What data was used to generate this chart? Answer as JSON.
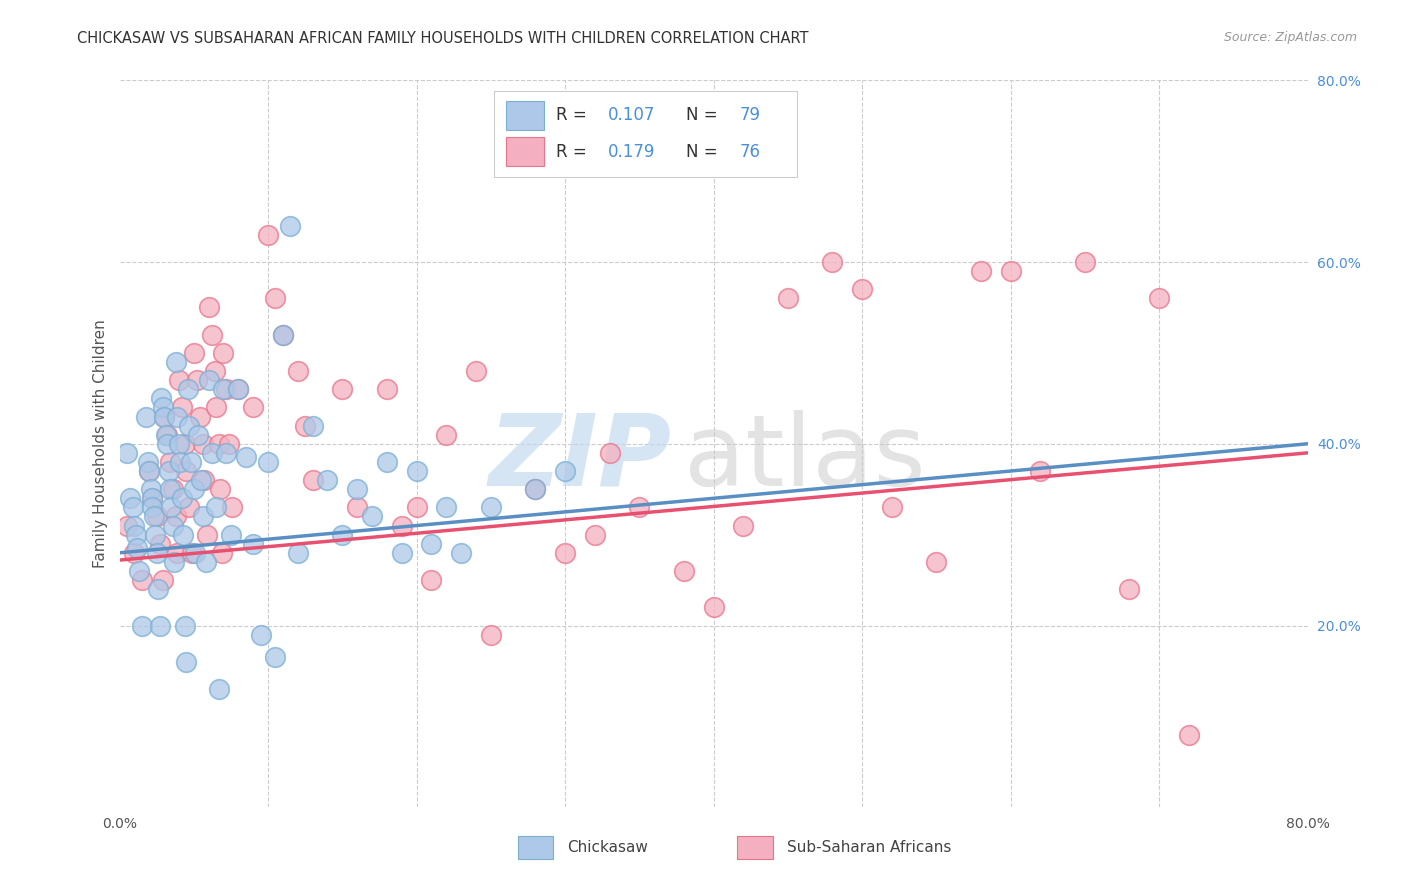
{
  "title": "CHICKASAW VS SUBSAHARAN AFRICAN FAMILY HOUSEHOLDS WITH CHILDREN CORRELATION CHART",
  "source": "Source: ZipAtlas.com",
  "ylabel": "Family Households with Children",
  "x_min": 0.0,
  "x_max": 0.8,
  "y_min": 0.0,
  "y_max": 0.8,
  "y_ticks_right": [
    0.2,
    0.4,
    0.6,
    0.8
  ],
  "y_tick_labels_right": [
    "20.0%",
    "40.0%",
    "60.0%",
    "80.0%"
  ],
  "chickasaw_color": "#7bafd4",
  "subsaharan_color": "#e8748c",
  "chickasaw_fill": "#adc8e8",
  "subsaharan_fill": "#f4b0c0",
  "trendline_chickasaw_color": "#5a8fc4",
  "trendline_subsaharan_color": "#e85070",
  "bottom_legend_1": "Chickasaw",
  "bottom_legend_2": "Sub-Saharan Africans",
  "bg_color": "#ffffff",
  "grid_color": "#cccccc",
  "title_color": "#333333",
  "axis_label_color": "#555555",
  "right_tick_color": "#4a90d9",
  "watermark_zip_color": "#c0d8ee",
  "watermark_atlas_color": "#c8c8c8",
  "chickasaw_x": [
    0.005,
    0.007,
    0.009,
    0.01,
    0.011,
    0.012,
    0.013,
    0.015,
    0.018,
    0.019,
    0.02,
    0.021,
    0.022,
    0.022,
    0.023,
    0.024,
    0.025,
    0.026,
    0.027,
    0.028,
    0.029,
    0.03,
    0.031,
    0.032,
    0.033,
    0.034,
    0.035,
    0.036,
    0.037,
    0.038,
    0.039,
    0.04,
    0.041,
    0.042,
    0.043,
    0.044,
    0.045,
    0.046,
    0.047,
    0.048,
    0.05,
    0.051,
    0.053,
    0.055,
    0.056,
    0.058,
    0.06,
    0.062,
    0.065,
    0.067,
    0.07,
    0.072,
    0.075,
    0.08,
    0.085,
    0.09,
    0.095,
    0.1,
    0.105,
    0.11,
    0.115,
    0.12,
    0.13,
    0.14,
    0.15,
    0.16,
    0.17,
    0.18,
    0.19,
    0.2,
    0.21,
    0.22,
    0.23,
    0.25,
    0.28,
    0.3
  ],
  "chickasaw_y": [
    0.39,
    0.34,
    0.33,
    0.31,
    0.3,
    0.285,
    0.26,
    0.2,
    0.43,
    0.38,
    0.37,
    0.35,
    0.34,
    0.33,
    0.32,
    0.3,
    0.28,
    0.24,
    0.2,
    0.45,
    0.44,
    0.43,
    0.41,
    0.4,
    0.37,
    0.35,
    0.33,
    0.31,
    0.27,
    0.49,
    0.43,
    0.4,
    0.38,
    0.34,
    0.3,
    0.2,
    0.16,
    0.46,
    0.42,
    0.38,
    0.35,
    0.28,
    0.41,
    0.36,
    0.32,
    0.27,
    0.47,
    0.39,
    0.33,
    0.13,
    0.46,
    0.39,
    0.3,
    0.46,
    0.385,
    0.29,
    0.19,
    0.38,
    0.165,
    0.52,
    0.64,
    0.28,
    0.42,
    0.36,
    0.3,
    0.35,
    0.32,
    0.38,
    0.28,
    0.37,
    0.29,
    0.33,
    0.28,
    0.33,
    0.35,
    0.37
  ],
  "subsaharan_x": [
    0.005,
    0.01,
    0.015,
    0.02,
    0.022,
    0.025,
    0.027,
    0.029,
    0.03,
    0.032,
    0.034,
    0.036,
    0.038,
    0.039,
    0.04,
    0.042,
    0.044,
    0.045,
    0.047,
    0.049,
    0.05,
    0.052,
    0.054,
    0.056,
    0.057,
    0.059,
    0.06,
    0.062,
    0.064,
    0.065,
    0.067,
    0.068,
    0.069,
    0.07,
    0.072,
    0.074,
    0.076,
    0.08,
    0.09,
    0.1,
    0.105,
    0.11,
    0.12,
    0.125,
    0.13,
    0.15,
    0.16,
    0.18,
    0.19,
    0.2,
    0.21,
    0.22,
    0.24,
    0.25,
    0.28,
    0.3,
    0.32,
    0.33,
    0.35,
    0.38,
    0.4,
    0.42,
    0.45,
    0.48,
    0.5,
    0.52,
    0.55,
    0.58,
    0.6,
    0.62,
    0.65,
    0.68,
    0.7,
    0.72
  ],
  "subsaharan_y": [
    0.31,
    0.28,
    0.25,
    0.37,
    0.34,
    0.32,
    0.29,
    0.25,
    0.43,
    0.41,
    0.38,
    0.35,
    0.32,
    0.28,
    0.47,
    0.44,
    0.4,
    0.37,
    0.33,
    0.28,
    0.5,
    0.47,
    0.43,
    0.4,
    0.36,
    0.3,
    0.55,
    0.52,
    0.48,
    0.44,
    0.4,
    0.35,
    0.28,
    0.5,
    0.46,
    0.4,
    0.33,
    0.46,
    0.44,
    0.63,
    0.56,
    0.52,
    0.48,
    0.42,
    0.36,
    0.46,
    0.33,
    0.46,
    0.31,
    0.33,
    0.25,
    0.41,
    0.48,
    0.19,
    0.35,
    0.28,
    0.3,
    0.39,
    0.33,
    0.26,
    0.22,
    0.31,
    0.56,
    0.6,
    0.57,
    0.33,
    0.27,
    0.59,
    0.59,
    0.37,
    0.6,
    0.24,
    0.56,
    0.08
  ],
  "trendline_x": [
    0.0,
    0.8
  ],
  "chickasaw_trend_y_start": 0.28,
  "chickasaw_trend_y_end": 0.4,
  "subsaharan_trend_y_start": 0.272,
  "subsaharan_trend_y_end": 0.39
}
